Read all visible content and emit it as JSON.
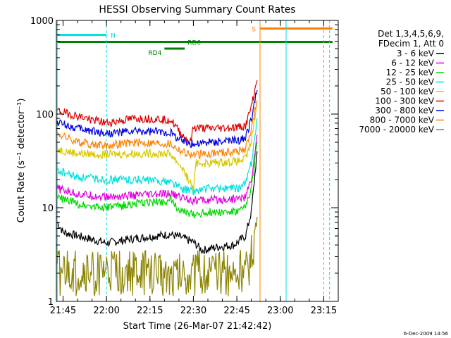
{
  "chart_data": {
    "type": "line",
    "title": "HESSI Observing Summary Count Rates",
    "xlabel": "Start Time (26-Mar-07 21:42:42)",
    "ylabel": "Count Rate (s⁻¹ detector⁻¹)",
    "y_scale": "log",
    "ylim": [
      1,
      1000
    ],
    "xlim": [
      "21:42:42",
      "23:20:00"
    ],
    "x_ticks": [
      "21:45",
      "22:00",
      "22:15",
      "22:30",
      "22:45",
      "23:00",
      "23:15"
    ],
    "y_ticks": [
      1,
      10,
      100,
      1000
    ],
    "y_tick_labels": [
      "1",
      "10",
      "100",
      "1000"
    ],
    "grid": false,
    "legend_position": "right",
    "legend_header": [
      "Det 1,3,4,5,6,9,",
      "FDecim 1, Att 0"
    ],
    "series": [
      {
        "name": "3 - 6 keV",
        "color": "#000000",
        "points": [
          [
            "21:43",
            7
          ],
          [
            "21:45",
            5.5
          ],
          [
            "21:50",
            5
          ],
          [
            "22:00",
            4.2
          ],
          [
            "22:10",
            4.7
          ],
          [
            "22:22",
            5.2
          ],
          [
            "22:26",
            4.8
          ],
          [
            "22:30",
            4.3
          ],
          [
            "22:33",
            3.5
          ],
          [
            "22:38",
            3.8
          ],
          [
            "22:44",
            4
          ],
          [
            "22:48",
            5
          ],
          [
            "22:50",
            9
          ],
          [
            "22:52",
            40
          ]
        ]
      },
      {
        "name": "6 - 12 keV",
        "color": "#e000e0",
        "points": [
          [
            "21:43",
            16
          ],
          [
            "21:50",
            14
          ],
          [
            "22:00",
            13
          ],
          [
            "22:10",
            13.5
          ],
          [
            "22:22",
            14
          ],
          [
            "22:26",
            13
          ],
          [
            "22:30",
            12
          ],
          [
            "22:35",
            12
          ],
          [
            "22:45",
            12.5
          ],
          [
            "22:48",
            13
          ],
          [
            "22:50",
            20
          ],
          [
            "22:52",
            60
          ]
        ]
      },
      {
        "name": "12 - 25 keV",
        "color": "#00d800",
        "points": [
          [
            "21:43",
            13
          ],
          [
            "21:50",
            11
          ],
          [
            "22:00",
            10
          ],
          [
            "22:10",
            11
          ],
          [
            "22:22",
            12
          ],
          [
            "22:26",
            9
          ],
          [
            "22:30",
            8.5
          ],
          [
            "22:35",
            9
          ],
          [
            "22:45",
            9
          ],
          [
            "22:48",
            10
          ],
          [
            "22:50",
            16
          ],
          [
            "22:52",
            50
          ]
        ]
      },
      {
        "name": "25 - 50 keV",
        "color": "#00e0e0",
        "points": [
          [
            "21:43",
            25
          ],
          [
            "21:50",
            21
          ],
          [
            "22:00",
            20
          ],
          [
            "22:10",
            20
          ],
          [
            "22:22",
            19
          ],
          [
            "22:26",
            16
          ],
          [
            "22:30",
            15
          ],
          [
            "22:35",
            16
          ],
          [
            "22:45",
            16
          ],
          [
            "22:48",
            18
          ],
          [
            "22:50",
            30
          ],
          [
            "22:52",
            90
          ]
        ]
      },
      {
        "name": "50 - 100 keV",
        "color": "#d8c800",
        "points": [
          [
            "21:43",
            42
          ],
          [
            "21:50",
            38
          ],
          [
            "22:00",
            37
          ],
          [
            "22:10",
            38
          ],
          [
            "22:22",
            38
          ],
          [
            "22:26",
            27
          ],
          [
            "22:30",
            16
          ],
          [
            "22:31",
            30
          ],
          [
            "22:35",
            30
          ],
          [
            "22:45",
            31
          ],
          [
            "22:48",
            33
          ],
          [
            "22:50",
            50
          ],
          [
            "22:52",
            140
          ]
        ]
      },
      {
        "name": "100 - 300 keV",
        "color": "#e00000",
        "points": [
          [
            "21:43",
            108
          ],
          [
            "21:50",
            95
          ],
          [
            "22:00",
            80
          ],
          [
            "22:10",
            90
          ],
          [
            "22:22",
            88
          ],
          [
            "22:26",
            60
          ],
          [
            "22:29",
            50
          ],
          [
            "22:30",
            72
          ],
          [
            "22:35",
            70
          ],
          [
            "22:45",
            72
          ],
          [
            "22:48",
            75
          ],
          [
            "22:50",
            120
          ],
          [
            "22:52",
            230
          ]
        ]
      },
      {
        "name": "300 - 800 keV",
        "color": "#0000e0",
        "points": [
          [
            "21:43",
            82
          ],
          [
            "21:50",
            70
          ],
          [
            "22:00",
            62
          ],
          [
            "22:10",
            65
          ],
          [
            "22:22",
            64
          ],
          [
            "22:26",
            52
          ],
          [
            "22:30",
            48
          ],
          [
            "22:35",
            50
          ],
          [
            "22:45",
            52
          ],
          [
            "22:48",
            55
          ],
          [
            "22:50",
            90
          ],
          [
            "22:52",
            180
          ]
        ]
      },
      {
        "name": "800 - 7000 keV",
        "color": "#ff8000",
        "points": [
          [
            "21:43",
            62
          ],
          [
            "21:50",
            50
          ],
          [
            "22:00",
            46
          ],
          [
            "22:10",
            50
          ],
          [
            "22:22",
            48
          ],
          [
            "22:26",
            40
          ],
          [
            "22:30",
            36
          ],
          [
            "22:35",
            38
          ],
          [
            "22:45",
            40
          ],
          [
            "22:48",
            42
          ],
          [
            "22:50",
            70
          ],
          [
            "22:52",
            140
          ]
        ]
      },
      {
        "name": "7000 - 20000 keV",
        "color": "#8c8400",
        "points": [
          [
            "21:43",
            2
          ],
          [
            "21:50",
            2
          ],
          [
            "22:00",
            2
          ],
          [
            "22:10",
            2
          ],
          [
            "22:22",
            2
          ],
          [
            "22:30",
            2
          ],
          [
            "22:40",
            2
          ],
          [
            "22:48",
            2
          ],
          [
            "22:50",
            3
          ],
          [
            "22:52",
            8
          ]
        ]
      }
    ],
    "annotations": [
      {
        "label": "N",
        "color": "#00e0e0",
        "start": "21:43",
        "end": "22:00",
        "level": 700
      },
      {
        "label": "S",
        "color": "#ff8000",
        "start": "22:53",
        "end": "23:18",
        "level": 820
      },
      {
        "label": "RD0",
        "color": "#008000",
        "start": "21:43",
        "end": "23:18",
        "level": 590
      },
      {
        "label": "RD4",
        "color": "#008000",
        "start": "22:20",
        "end": "22:27",
        "level": 500
      }
    ],
    "footer_date": "6-Dec-2009 14:56"
  }
}
